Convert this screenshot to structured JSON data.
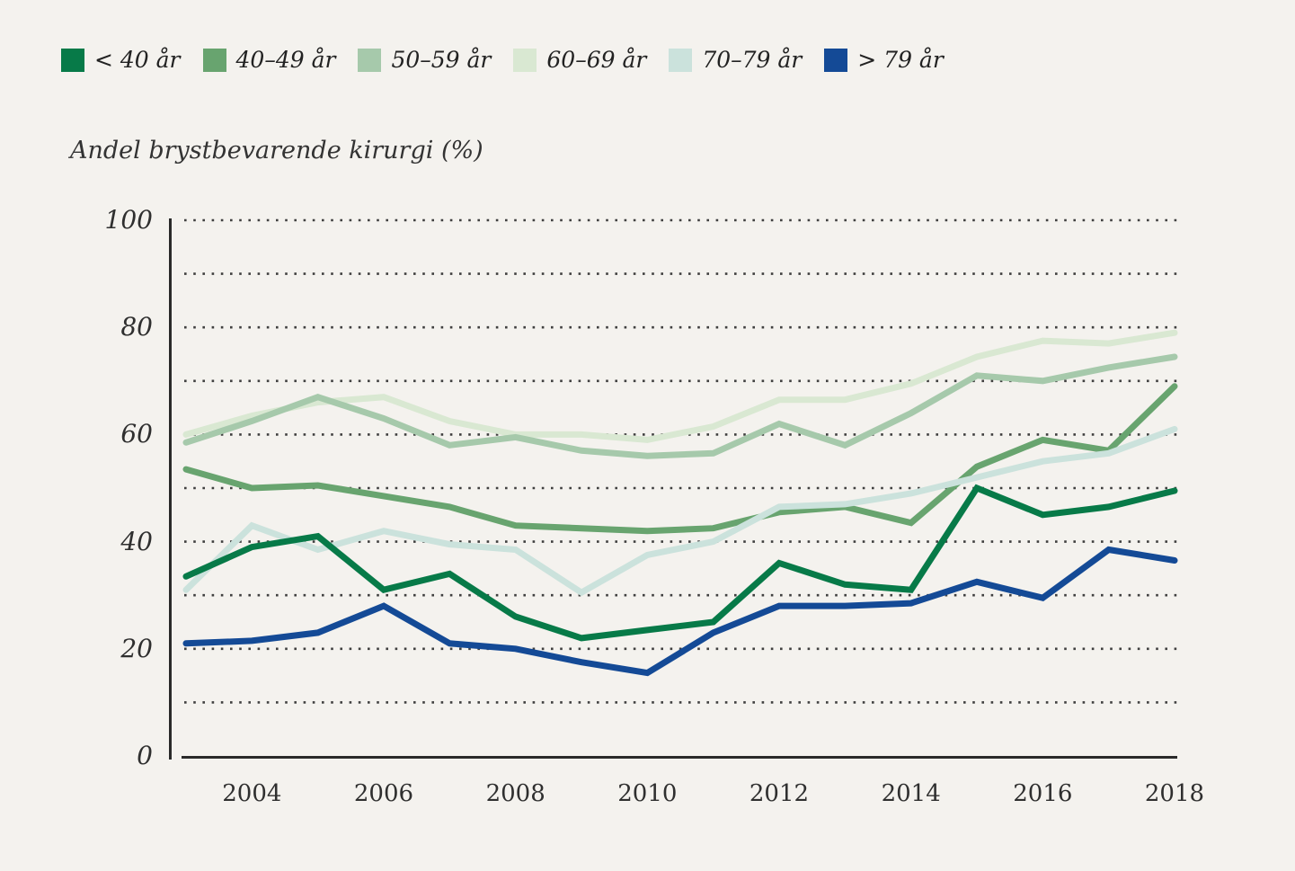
{
  "title": "Andel brystbevarende kirurgi (%)",
  "background_color": "#f4f2ee",
  "grid_color": "#3f3f3f",
  "axis_color": "#2a2a2a",
  "legend": {
    "items": [
      {
        "label": "< 40 år",
        "color": "#077a48"
      },
      {
        "label": "40–49 år",
        "color": "#68a46f"
      },
      {
        "label": "50–59 år",
        "color": "#a6c9ab"
      },
      {
        "label": "60–69 år",
        "color": "#d9e8d2"
      },
      {
        "label": "70–79 år",
        "color": "#cbe2dc"
      },
      {
        "label": "> 79 år",
        "color": "#144a96"
      }
    ]
  },
  "axes": {
    "y_ticks": [
      {
        "value": 0,
        "label": "0"
      },
      {
        "value": 20,
        "label": "20"
      },
      {
        "value": 40,
        "label": "40"
      },
      {
        "value": 60,
        "label": "60"
      },
      {
        "value": 80,
        "label": "80"
      },
      {
        "value": 100,
        "label": "100"
      }
    ],
    "x_ticks": [
      {
        "year": 2004,
        "label": "2004"
      },
      {
        "year": 2006,
        "label": "2006"
      },
      {
        "year": 2008,
        "label": "2008"
      },
      {
        "year": 2010,
        "label": "2010"
      },
      {
        "year": 2012,
        "label": "2012"
      },
      {
        "year": 2014,
        "label": "2014"
      },
      {
        "year": 2016,
        "label": "2016"
      },
      {
        "year": 2018,
        "label": "2018"
      }
    ]
  },
  "chart_data": {
    "type": "line",
    "title": "Andel brystbevarende kirurgi (%)",
    "xlabel": "",
    "ylabel": "Andel brystbevarende kirurgi (%)",
    "ylim": [
      0,
      100
    ],
    "grid": "dotted horizontal lines every 10 units",
    "legend_position": "top-left",
    "x": [
      2003,
      2004,
      2005,
      2006,
      2007,
      2008,
      2009,
      2010,
      2011,
      2012,
      2013,
      2014,
      2015,
      2016,
      2017,
      2018
    ],
    "series": [
      {
        "name": "< 40 år",
        "color": "#077a48",
        "values": [
          33.5,
          39,
          41,
          31,
          34,
          26,
          22,
          23.5,
          25,
          36,
          32,
          31,
          50,
          45,
          46.5,
          49.5
        ]
      },
      {
        "name": "40–49 år",
        "color": "#68a46f",
        "values": [
          53.5,
          50,
          50.5,
          48.5,
          46.5,
          43,
          42.5,
          42,
          42.5,
          45.5,
          46.5,
          43.5,
          54,
          59,
          57,
          69
        ]
      },
      {
        "name": "50–59 år",
        "color": "#a6c9ab",
        "values": [
          58.5,
          62.5,
          67,
          63,
          58,
          59.5,
          57,
          56,
          56.5,
          62,
          58,
          64,
          71,
          70,
          72.5,
          74.5
        ]
      },
      {
        "name": "60–69 år",
        "color": "#d9e8d2",
        "values": [
          60,
          63.5,
          66,
          67,
          62.5,
          60,
          60,
          59,
          61.5,
          66.5,
          66.5,
          69.5,
          74.5,
          77.5,
          77,
          79
        ]
      },
      {
        "name": "70–79 år",
        "color": "#cbe2dc",
        "values": [
          31,
          43,
          38.5,
          42,
          39.5,
          38.5,
          30.5,
          37.5,
          40,
          46.5,
          47,
          49,
          52,
          55,
          56.5,
          61
        ]
      },
      {
        "name": "> 79 år",
        "color": "#144a96",
        "values": [
          21,
          21.5,
          23,
          28,
          21,
          20,
          17.5,
          15.5,
          23,
          28,
          28,
          28.5,
          32.5,
          29.5,
          38.5,
          36.5
        ]
      }
    ]
  }
}
